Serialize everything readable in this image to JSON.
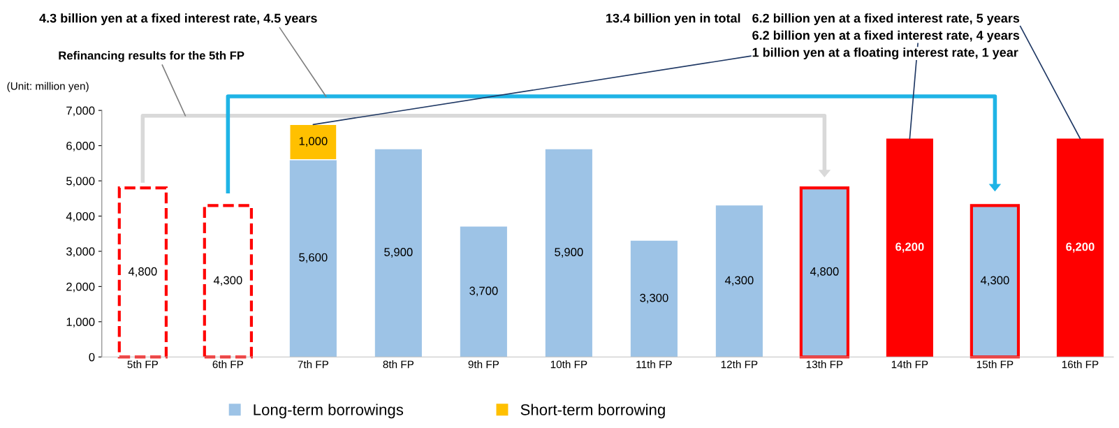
{
  "chart_data": {
    "type": "bar",
    "stacked": true,
    "categories": [
      "5th FP",
      "6th FP",
      "7th FP",
      "8th FP",
      "9th FP",
      "10th FP",
      "11th FP",
      "12th FP",
      "13th FP",
      "14th FP",
      "15th FP",
      "16th FP"
    ],
    "series": [
      {
        "name": "Long-term borrowings",
        "color": "#9dc3e6",
        "colors": [
          "#ffffff",
          "#ffffff",
          "#9dc3e6",
          "#9dc3e6",
          "#9dc3e6",
          "#9dc3e6",
          "#9dc3e6",
          "#9dc3e6",
          "#9dc3e6",
          "#ff0000",
          "#9dc3e6",
          "#ff0000"
        ],
        "values": [
          4800,
          4300,
          5600,
          5900,
          3700,
          5900,
          3300,
          4300,
          4800,
          6200,
          4300,
          6200
        ],
        "value_labels": [
          "4,800",
          "4,300",
          "5,600",
          "5,900",
          "3,700",
          "5,900",
          "3,300",
          "4,300",
          "4,800",
          "6,200",
          "4,300",
          "6,200"
        ]
      },
      {
        "name": "Short-term borrowing",
        "color": "#ffc000",
        "values": [
          null,
          null,
          1000,
          null,
          null,
          null,
          null,
          null,
          null,
          null,
          null,
          null
        ],
        "value_labels": [
          null,
          null,
          "1,000",
          null,
          null,
          null,
          null,
          null,
          null,
          null,
          null,
          null
        ]
      }
    ],
    "ylabel": "(Unit: million yen)",
    "ylim": [
      0,
      7000
    ],
    "yticks": [
      0,
      {
        "value": 1000,
        "label": "1,000"
      },
      {
        "value": 2000,
        "label": "2,000"
      },
      {
        "value": 3000,
        "label": "3,000"
      },
      {
        "value": 4000,
        "label": "4,000"
      },
      {
        "value": 5000,
        "label": "5,000"
      },
      {
        "value": 6000,
        "label": "6,000"
      },
      {
        "value": 7000,
        "label": "7,000"
      }
    ],
    "grid": false,
    "legend": "bottom",
    "annotations": [
      "4.3 billion yen at a fixed interest rate, 4.5 years",
      "Refinancing results for the 5th FP",
      "13.4 billion yen in total",
      {
        "text": "6.2 billion yen at a fixed interest rate, 5 years",
        "x": "16th FP",
        "y": 6200
      },
      {
        "text": "6.2 billion yen at a fixed interest rate, 4 years",
        "x": "14th FP",
        "y": 6200
      },
      {
        "text": "1 billion yen at a floating interest rate, 1 year",
        "x": "7th FP",
        "y": 6600
      }
    ]
  }
}
